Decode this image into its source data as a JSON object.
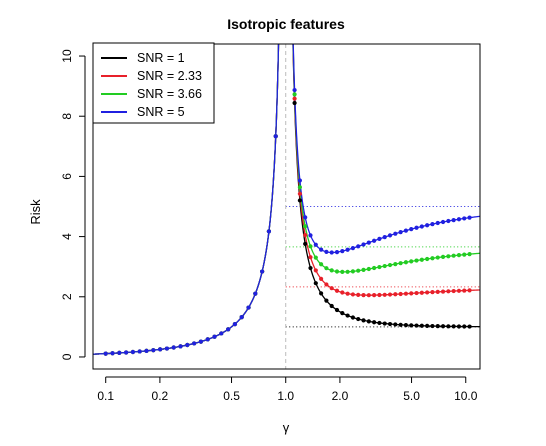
{
  "chart_data": {
    "type": "line",
    "title": "Isotropic features",
    "xlabel": "γ",
    "ylabel": "Risk",
    "x_scale": "log",
    "xlim": [
      0.085,
      12
    ],
    "ylim": [
      -0.4,
      10.4
    ],
    "x_ticks": [
      0.1,
      0.2,
      0.5,
      1.0,
      2.0,
      5.0,
      10.0
    ],
    "x_tick_labels": [
      "0.1",
      "0.2",
      "0.5",
      "1.0",
      "2.0",
      "5.0",
      "10.0"
    ],
    "y_ticks": [
      0,
      2,
      4,
      6,
      8,
      10
    ],
    "y_tick_labels": [
      "0",
      "2",
      "4",
      "6",
      "8",
      "10"
    ],
    "grid": false,
    "legend_position": "top-left",
    "reference_line_x": 1.0,
    "interpolation_threshold": 1.0,
    "series": [
      {
        "name": "SNR = 1",
        "snr": 1,
        "color": "#000000",
        "marker": "point"
      },
      {
        "name": "SNR = 2.33",
        "snr": 2.33,
        "color": "#e8202a",
        "marker": "point"
      },
      {
        "name": "SNR = 3.66",
        "snr": 3.66,
        "color": "#22cc22",
        "marker": "point"
      },
      {
        "name": "SNR = 5",
        "snr": 5,
        "color": "#2020e0",
        "marker": "point"
      }
    ],
    "horizontal_reference_lines": [
      {
        "y": 1,
        "color": "#000000",
        "style": "dotted"
      },
      {
        "y": 2.33,
        "color": "#e8202a",
        "style": "dotted"
      },
      {
        "y": 3.66,
        "color": "#22cc22",
        "style": "dotted"
      },
      {
        "y": 5,
        "color": "#2020e0",
        "style": "dotted"
      }
    ]
  }
}
